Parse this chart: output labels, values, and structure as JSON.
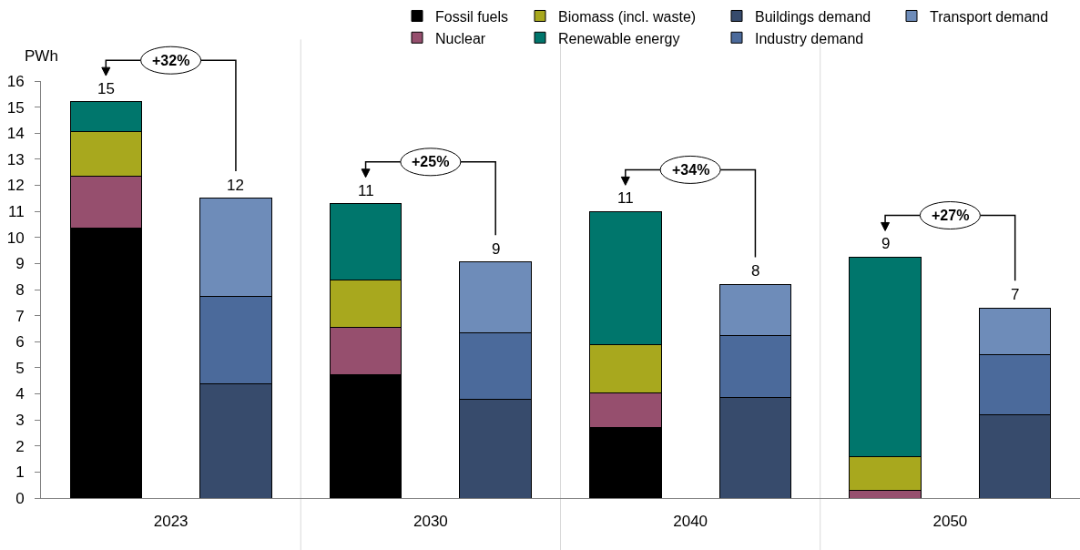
{
  "chart_data": {
    "type": "bar",
    "stacked": true,
    "categories": [
      "2023",
      null,
      "2030",
      null,
      "2040",
      null,
      "2050",
      null
    ],
    "ylabel": "PWh",
    "ylim": [
      0,
      16
    ],
    "yticks": [
      0,
      1,
      2,
      3,
      4,
      5,
      6,
      7,
      8,
      9,
      10,
      11,
      12,
      13,
      14,
      15,
      16
    ],
    "series": [
      {
        "name": "Fossil fuels",
        "color": "#000000",
        "values": [
          10.35,
          null,
          4.75,
          null,
          2.7,
          null,
          null,
          null
        ]
      },
      {
        "name": "Nuclear",
        "color": "#964f6e",
        "values": [
          2.0,
          null,
          1.8,
          null,
          1.35,
          null,
          0.3,
          null
        ]
      },
      {
        "name": "Biomass (incl. waste)",
        "color": "#a8a81e",
        "values": [
          1.7,
          null,
          1.8,
          null,
          1.85,
          null,
          1.3,
          null
        ]
      },
      {
        "name": "Renewable energy",
        "color": "#00766c",
        "values": [
          1.15,
          null,
          2.95,
          null,
          5.1,
          null,
          7.65,
          null
        ]
      },
      {
        "name": "Buildings demand",
        "color": "#374b6c",
        "values": [
          null,
          4.4,
          null,
          3.8,
          null,
          3.85,
          null,
          3.2
        ]
      },
      {
        "name": "Industry demand",
        "color": "#4b6a9b",
        "values": [
          null,
          3.35,
          null,
          2.55,
          null,
          2.4,
          null,
          2.3
        ]
      },
      {
        "name": "Transport demand",
        "color": "#6e8cb9",
        "values": [
          null,
          3.75,
          null,
          2.7,
          null,
          1.95,
          null,
          1.8
        ]
      }
    ],
    "totals": [
      "15",
      "12",
      "11",
      "9",
      "11",
      "8",
      "9",
      "7"
    ],
    "annotations": [
      "+32%",
      "+25%",
      "+34%",
      "+27%"
    ],
    "grid": "x",
    "legend": "top right"
  }
}
